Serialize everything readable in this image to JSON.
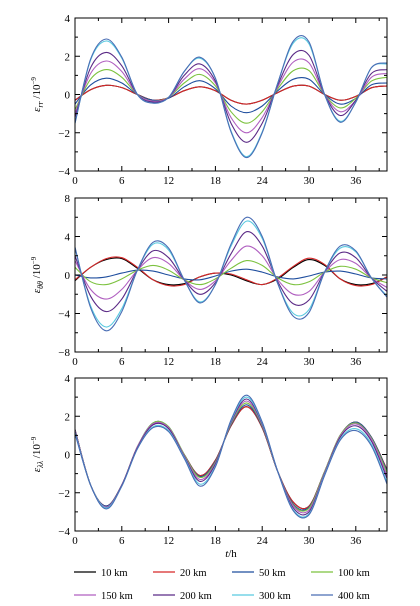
{
  "chart_data": [
    {
      "type": "line",
      "panel": "top",
      "ylabel_symbol": "ε",
      "ylabel_sub": "rr",
      "ylabel_unit": "/10",
      "ylabel_exp": "−9",
      "xlim": [
        0,
        40
      ],
      "ylim": [
        -4,
        4
      ],
      "xticks": [
        0,
        6,
        12,
        18,
        24,
        30,
        36
      ],
      "yticks": [
        -4,
        -2,
        0,
        2,
        4
      ],
      "ytick_labels": [
        "−4",
        "−2",
        "0",
        "2",
        "4"
      ],
      "xtick_labels": [
        "0",
        "6",
        "12",
        "18",
        "24",
        "30",
        "36"
      ],
      "x": [
        0,
        2,
        4,
        6,
        8,
        10,
        12,
        14,
        16,
        18,
        20,
        22,
        24,
        26,
        28,
        30,
        32,
        34,
        36,
        38,
        40
      ],
      "series": [
        {
          "name": "10 km",
          "color": "#000000",
          "values": [
            -0.3,
            0.25,
            0.48,
            0.36,
            0.0,
            -0.3,
            -0.18,
            0.2,
            0.4,
            0.2,
            -0.3,
            -0.5,
            -0.3,
            0.1,
            0.44,
            0.44,
            0.0,
            -0.3,
            -0.1,
            0.35,
            0.45
          ]
        },
        {
          "name": "20 km",
          "color": "#d62728",
          "values": [
            -0.3,
            0.25,
            0.48,
            0.36,
            0.0,
            -0.3,
            -0.18,
            0.2,
            0.4,
            0.2,
            -0.3,
            -0.5,
            -0.3,
            0.1,
            0.44,
            0.44,
            0.0,
            -0.3,
            -0.1,
            0.35,
            0.45
          ]
        },
        {
          "name": "50 km",
          "color": "#1f4e9e",
          "values": [
            -0.5,
            0.5,
            0.85,
            0.6,
            0.0,
            -0.3,
            -0.2,
            0.4,
            0.72,
            0.3,
            -0.6,
            -0.95,
            -0.6,
            0.2,
            0.8,
            0.8,
            0.0,
            -0.5,
            -0.2,
            0.5,
            0.6
          ]
        },
        {
          "name": "100 km",
          "color": "#7cc23f",
          "values": [
            -0.8,
            0.8,
            1.3,
            0.9,
            0.0,
            -0.35,
            -0.15,
            0.6,
            1.05,
            0.45,
            -0.9,
            -1.5,
            -0.9,
            0.3,
            1.25,
            1.25,
            0.0,
            -0.7,
            -0.2,
            0.7,
            0.9
          ]
        },
        {
          "name": "150 km",
          "color": "#b05fc0",
          "values": [
            -1.0,
            1.1,
            1.75,
            1.2,
            0.0,
            -0.35,
            -0.15,
            0.8,
            1.35,
            0.6,
            -1.2,
            -2.0,
            -1.2,
            0.4,
            1.7,
            1.65,
            0.0,
            -0.9,
            -0.3,
            0.9,
            1.1
          ]
        },
        {
          "name": "200 km",
          "color": "#5b2a86",
          "values": [
            -1.2,
            1.4,
            2.2,
            1.5,
            0.0,
            -0.4,
            -0.15,
            1.0,
            1.6,
            0.7,
            -1.5,
            -2.5,
            -1.5,
            0.5,
            2.1,
            2.05,
            0.0,
            -1.1,
            -0.3,
            1.1,
            1.3
          ]
        },
        {
          "name": "300 km",
          "color": "#59c9e0",
          "values": [
            -1.5,
            1.8,
            2.8,
            1.9,
            0.0,
            -0.45,
            -0.15,
            1.2,
            1.9,
            0.85,
            -1.9,
            -3.25,
            -1.95,
            0.6,
            2.7,
            2.65,
            0.0,
            -1.4,
            -0.4,
            1.4,
            1.6
          ]
        },
        {
          "name": "400 km",
          "color": "#4a6eb5",
          "values": [
            -1.5,
            1.85,
            2.9,
            1.95,
            0.0,
            -0.45,
            -0.15,
            1.2,
            1.95,
            0.85,
            -1.95,
            -3.3,
            -2.0,
            0.6,
            2.8,
            2.75,
            0.0,
            -1.45,
            -0.4,
            1.4,
            1.65
          ]
        }
      ]
    },
    {
      "type": "line",
      "panel": "middle",
      "ylabel_symbol": "ε",
      "ylabel_sub": "θθ",
      "ylabel_unit": "/10",
      "ylabel_exp": "−9",
      "xlim": [
        0,
        40
      ],
      "ylim": [
        -8,
        8
      ],
      "xticks": [
        0,
        6,
        12,
        18,
        24,
        30,
        36
      ],
      "yticks": [
        -8,
        -4,
        0,
        4,
        8
      ],
      "ytick_labels": [
        "−8",
        "−4",
        "0",
        "4",
        "8"
      ],
      "xtick_labels": [
        "0",
        "6",
        "12",
        "18",
        "24",
        "30",
        "36"
      ],
      "x": [
        0,
        2,
        4,
        6,
        8,
        10,
        12,
        14,
        16,
        18,
        20,
        22,
        24,
        26,
        28,
        30,
        32,
        34,
        36,
        38,
        40
      ],
      "series": [
        {
          "name": "10 km",
          "color": "#000000",
          "values": [
            -0.6,
            0.8,
            1.6,
            1.7,
            0.7,
            -0.5,
            -1.0,
            -0.9,
            -0.2,
            0.2,
            0.0,
            -0.6,
            -1.0,
            -0.4,
            0.8,
            1.6,
            1.0,
            -0.4,
            -1.0,
            -0.9,
            -0.2
          ]
        },
        {
          "name": "20 km",
          "color": "#d62728",
          "values": [
            -0.5,
            0.8,
            1.7,
            1.8,
            0.8,
            -0.5,
            -1.1,
            -1.0,
            -0.2,
            0.2,
            0.1,
            -0.5,
            -1.0,
            -0.3,
            0.9,
            1.75,
            1.1,
            -0.4,
            -1.1,
            -1.0,
            -0.2
          ]
        },
        {
          "name": "50 km",
          "color": "#1f4e9e",
          "values": [
            0.0,
            -0.3,
            -0.2,
            0.2,
            0.5,
            0.4,
            0.0,
            -0.4,
            -0.5,
            -0.1,
            0.4,
            0.6,
            0.3,
            -0.2,
            -0.4,
            -0.1,
            0.3,
            0.4,
            0.1,
            -0.3,
            -0.4
          ]
        },
        {
          "name": "100 km",
          "color": "#7cc23f",
          "values": [
            0.8,
            -0.7,
            -1.0,
            -0.4,
            0.5,
            1.0,
            0.5,
            -0.5,
            -1.0,
            -0.4,
            0.7,
            1.5,
            1.0,
            -0.3,
            -1.0,
            -0.7,
            0.3,
            0.9,
            0.6,
            -0.3,
            -0.8
          ]
        },
        {
          "name": "150 km",
          "color": "#b05fc0",
          "values": [
            1.5,
            -1.5,
            -2.5,
            -1.5,
            0.5,
            1.8,
            1.2,
            -0.5,
            -1.5,
            -0.6,
            1.5,
            3.0,
            2.0,
            -0.5,
            -2.0,
            -1.7,
            0.3,
            1.6,
            1.2,
            -0.3,
            -1.3
          ]
        },
        {
          "name": "200 km",
          "color": "#5b2a86",
          "values": [
            2.0,
            -2.2,
            -3.8,
            -2.5,
            0.5,
            2.5,
            1.8,
            -0.5,
            -2.0,
            -0.8,
            2.2,
            4.5,
            3.0,
            -0.7,
            -3.0,
            -2.6,
            0.3,
            2.3,
            1.8,
            -0.3,
            -1.7
          ]
        },
        {
          "name": "300 km",
          "color": "#59c9e0",
          "values": [
            2.8,
            -3.2,
            -5.4,
            -3.5,
            0.5,
            3.2,
            2.6,
            -0.5,
            -2.8,
            -1.0,
            3.0,
            5.6,
            3.8,
            -0.9,
            -4.0,
            -3.6,
            0.3,
            2.8,
            2.4,
            -0.3,
            -2.2
          ]
        },
        {
          "name": "400 km",
          "color": "#4a6eb5",
          "values": [
            2.9,
            -3.4,
            -5.8,
            -3.8,
            0.5,
            3.4,
            2.8,
            -0.5,
            -2.9,
            -1.0,
            3.2,
            6.0,
            4.0,
            -0.9,
            -4.3,
            -3.9,
            0.3,
            3.0,
            2.5,
            -0.3,
            -2.3
          ]
        }
      ]
    },
    {
      "type": "line",
      "panel": "bottom",
      "ylabel_symbol": "ε",
      "ylabel_sub": "λλ",
      "ylabel_unit": "/10",
      "ylabel_exp": "−9",
      "xlabel_var": "t",
      "xlabel_unit": "/h",
      "xlim": [
        0,
        40
      ],
      "ylim": [
        -4,
        4
      ],
      "xticks": [
        0,
        6,
        12,
        18,
        24,
        30,
        36
      ],
      "yticks": [
        -4,
        -2,
        0,
        2,
        4
      ],
      "ytick_labels": [
        "−4",
        "−2",
        "0",
        "2",
        "4"
      ],
      "xtick_labels": [
        "0",
        "6",
        "12",
        "18",
        "24",
        "30",
        "36"
      ],
      "x": [
        0,
        2,
        4,
        6,
        8,
        10,
        12,
        14,
        16,
        18,
        20,
        22,
        24,
        26,
        28,
        30,
        32,
        34,
        36,
        38,
        40
      ],
      "series": [
        {
          "name": "10 km",
          "color": "#000000",
          "values": [
            1.3,
            -1.6,
            -2.7,
            -1.6,
            0.4,
            1.6,
            1.4,
            0.0,
            -1.1,
            -0.3,
            1.5,
            2.5,
            1.4,
            -0.9,
            -2.5,
            -2.7,
            -0.9,
            1.0,
            1.7,
            0.9,
            -0.8
          ]
        },
        {
          "name": "20 km",
          "color": "#d62728",
          "values": [
            1.3,
            -1.6,
            -2.7,
            -1.6,
            0.4,
            1.6,
            1.4,
            0.0,
            -1.1,
            -0.3,
            1.5,
            2.5,
            1.4,
            -0.9,
            -2.5,
            -2.7,
            -0.9,
            1.0,
            1.7,
            0.9,
            -0.8
          ]
        },
        {
          "name": "50 km",
          "color": "#1f4e9e",
          "values": [
            1.3,
            -1.6,
            -2.7,
            -1.6,
            0.4,
            1.65,
            1.45,
            0.0,
            -1.15,
            -0.35,
            1.55,
            2.6,
            1.45,
            -0.9,
            -2.6,
            -2.75,
            -0.9,
            1.0,
            1.7,
            0.9,
            -0.85
          ]
        },
        {
          "name": "100 km",
          "color": "#7cc23f",
          "values": [
            1.25,
            -1.6,
            -2.75,
            -1.6,
            0.4,
            1.65,
            1.45,
            0.0,
            -1.2,
            -0.4,
            1.6,
            2.7,
            1.5,
            -0.9,
            -2.65,
            -2.8,
            -0.9,
            1.0,
            1.65,
            0.85,
            -0.95
          ]
        },
        {
          "name": "150 km",
          "color": "#b05fc0",
          "values": [
            1.25,
            -1.6,
            -2.75,
            -1.6,
            0.4,
            1.6,
            1.4,
            -0.05,
            -1.3,
            -0.45,
            1.65,
            2.8,
            1.55,
            -0.9,
            -2.7,
            -2.9,
            -0.95,
            0.95,
            1.6,
            0.8,
            -1.1
          ]
        },
        {
          "name": "200 km",
          "color": "#5b2a86",
          "values": [
            1.2,
            -1.6,
            -2.8,
            -1.6,
            0.35,
            1.55,
            1.35,
            -0.1,
            -1.4,
            -0.5,
            1.7,
            2.9,
            1.6,
            -0.9,
            -2.8,
            -3.0,
            -1.0,
            0.9,
            1.5,
            0.7,
            -1.25
          ]
        },
        {
          "name": "300 km",
          "color": "#59c9e0",
          "values": [
            1.15,
            -1.6,
            -2.8,
            -1.65,
            0.3,
            1.45,
            1.25,
            -0.15,
            -1.55,
            -0.6,
            1.75,
            3.0,
            1.65,
            -0.9,
            -2.9,
            -3.1,
            -1.05,
            0.8,
            1.35,
            0.55,
            -1.45
          ]
        },
        {
          "name": "400 km",
          "color": "#4a6eb5",
          "values": [
            1.1,
            -1.6,
            -2.85,
            -1.65,
            0.3,
            1.4,
            1.2,
            -0.2,
            -1.65,
            -0.65,
            1.8,
            3.1,
            1.7,
            -0.9,
            -2.95,
            -3.15,
            -1.1,
            0.75,
            1.25,
            0.45,
            -1.55
          ]
        }
      ]
    }
  ],
  "legend": {
    "entries": [
      {
        "label": "10 km",
        "color": "#000000"
      },
      {
        "label": "20 km",
        "color": "#d62728"
      },
      {
        "label": "50 km",
        "color": "#1f4e9e"
      },
      {
        "label": "100 km",
        "color": "#7cc23f"
      },
      {
        "label": "150 km",
        "color": "#b05fc0"
      },
      {
        "label": "200 km",
        "color": "#5b2a86"
      },
      {
        "label": "300 km",
        "color": "#59c9e0"
      },
      {
        "label": "400 km",
        "color": "#4a6eb5"
      }
    ]
  }
}
